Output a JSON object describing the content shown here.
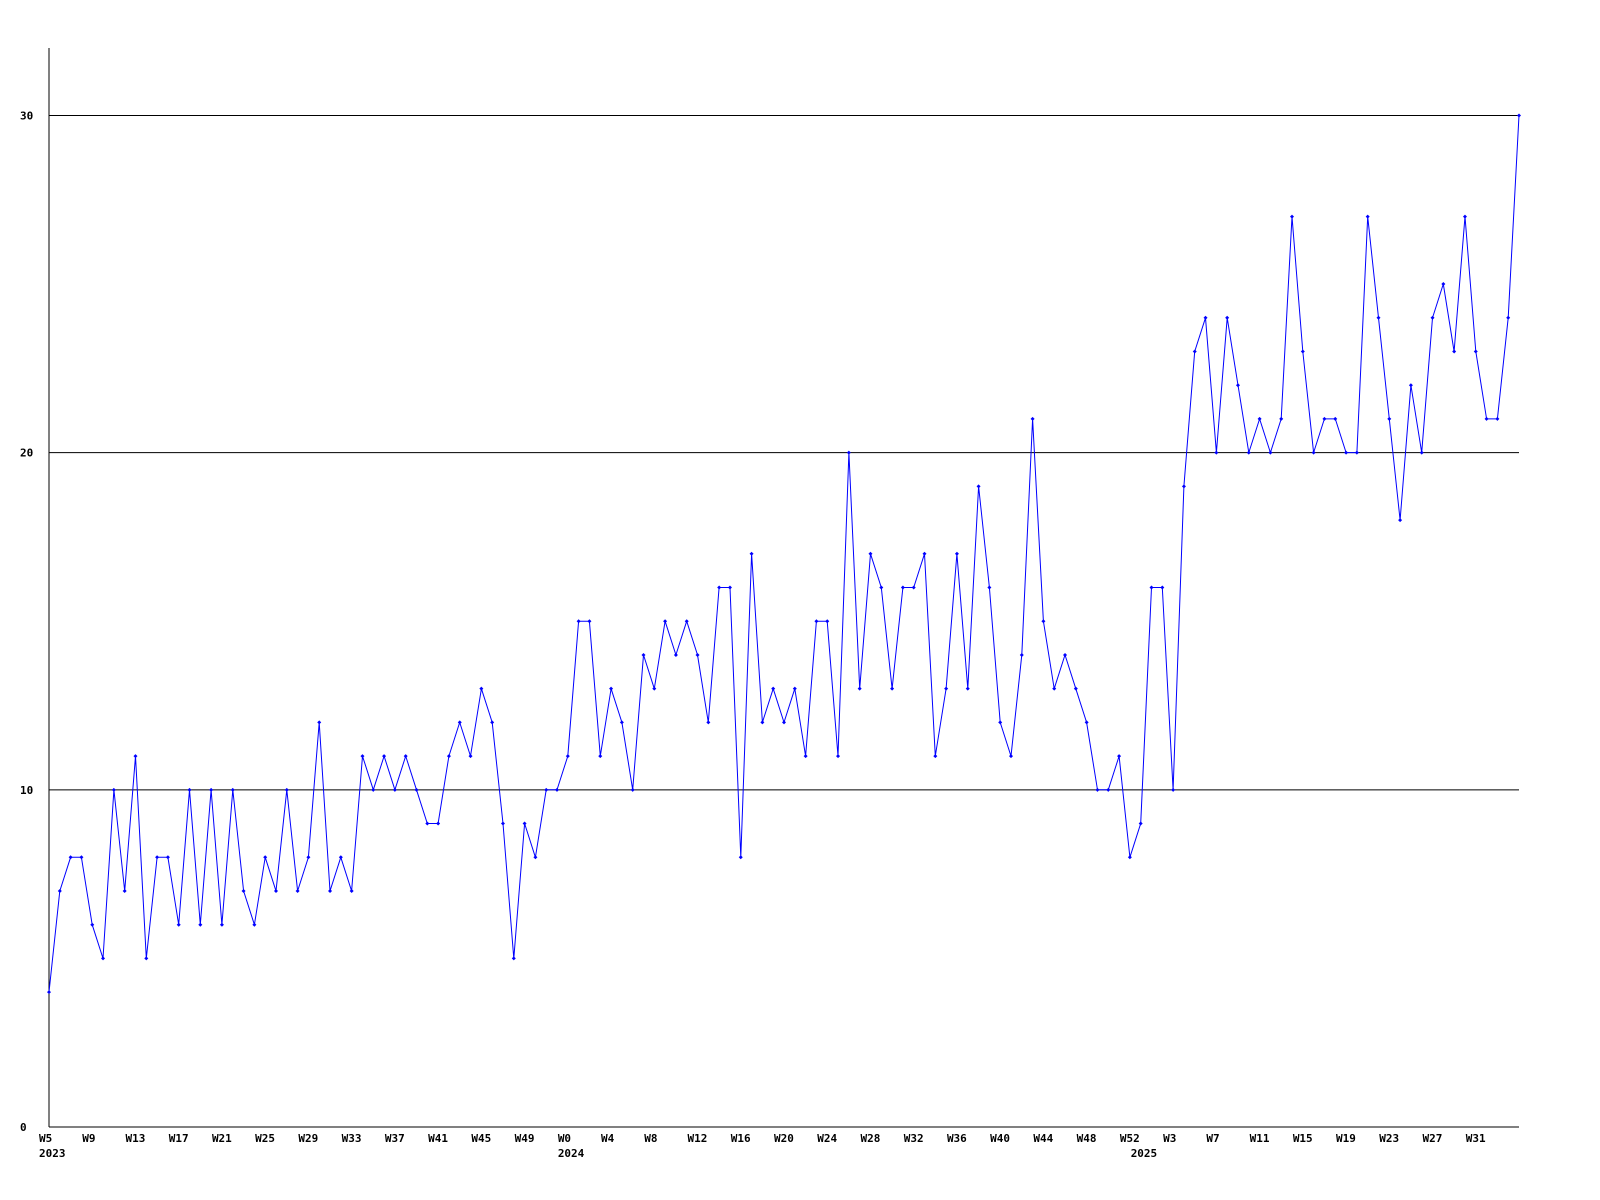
{
  "chart_data": {
    "type": "line",
    "categories": [
      "W5",
      null,
      null,
      null,
      "W9",
      null,
      null,
      null,
      "W13",
      null,
      null,
      null,
      "W17",
      null,
      null,
      null,
      "W21",
      null,
      null,
      null,
      "W25",
      null,
      null,
      null,
      "W29",
      null,
      null,
      null,
      "W33",
      null,
      null,
      null,
      "W37",
      null,
      null,
      null,
      "W41",
      null,
      null,
      null,
      "W45",
      null,
      null,
      null,
      "W49",
      null,
      null,
      null,
      "W0",
      null,
      null,
      null,
      "W4",
      null,
      null,
      null,
      "W8",
      null,
      null,
      null,
      "W12",
      null,
      null,
      null,
      "W16",
      null,
      null,
      null,
      "W20",
      null,
      null,
      null,
      "W24",
      null,
      null,
      null,
      "W28",
      null,
      null,
      null,
      "W32",
      null,
      null,
      null,
      "W36",
      null,
      null,
      null,
      "W40",
      null,
      null,
      null,
      "W44",
      null,
      null,
      null,
      "W48",
      null,
      null,
      null,
      "W52",
      null,
      null,
      null,
      "W3",
      null,
      null,
      null,
      "W7",
      null,
      null,
      null,
      "W11",
      null,
      null,
      null,
      "W15",
      null,
      null,
      null,
      "W19",
      null,
      null,
      null,
      "W23",
      null,
      null,
      null,
      "W27",
      null,
      null,
      null,
      "W31",
      null,
      null,
      null,
      null
    ],
    "x_groups": [
      {
        "label": "2023",
        "start": 0
      },
      {
        "label": "2024",
        "start": 48
      },
      {
        "label": "2025",
        "start": 101
      }
    ],
    "series": [
      {
        "color": "#0000ff",
        "values": [
          4,
          7,
          8,
          8,
          6,
          5,
          10,
          7,
          11,
          5,
          8,
          8,
          6,
          10,
          6,
          10,
          6,
          10,
          7,
          6,
          8,
          7,
          10,
          7,
          8,
          12,
          7,
          8,
          7,
          11,
          10,
          11,
          10,
          11,
          10,
          9,
          9,
          11,
          12,
          11,
          13,
          12,
          9,
          5,
          9,
          8,
          10,
          10,
          11,
          15,
          15,
          11,
          13,
          12,
          10,
          14,
          13,
          15,
          14,
          15,
          14,
          12,
          16,
          16,
          8,
          17,
          12,
          13,
          12,
          13,
          11,
          15,
          15,
          11,
          20,
          13,
          17,
          16,
          13,
          16,
          16,
          17,
          11,
          13,
          17,
          13,
          19,
          16,
          12,
          11,
          14,
          21,
          15,
          13,
          14,
          13,
          12,
          10,
          10,
          11,
          8,
          9,
          16,
          16,
          10,
          19,
          23,
          24,
          20,
          24,
          22,
          20,
          21,
          20,
          21,
          27,
          23,
          20,
          21,
          21,
          20,
          20,
          27,
          24,
          21,
          18,
          22,
          20,
          24,
          25,
          23,
          27,
          23,
          21,
          21,
          24,
          30
        ]
      }
    ],
    "ylim": [
      0,
      32
    ],
    "yticks": [
      0,
      10,
      20,
      30
    ],
    "grid": true
  }
}
